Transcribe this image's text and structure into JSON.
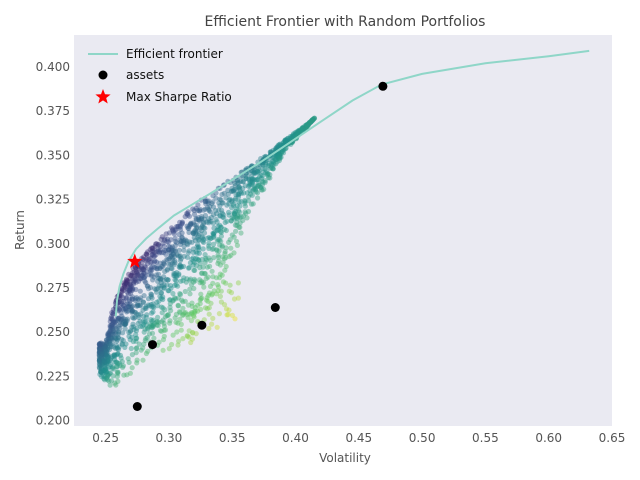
{
  "chart_data": {
    "type": "scatter",
    "title": "Efficient Frontier with Random Portfolios",
    "xlabel": "Volatility",
    "ylabel": "Return",
    "xlim": [
      0.225,
      0.65
    ],
    "ylim": [
      0.197,
      0.418
    ],
    "xticks": [
      "0.25",
      "0.30",
      "0.35",
      "0.40",
      "0.45",
      "0.50",
      "0.55",
      "0.60",
      "0.65"
    ],
    "yticks": [
      "0.200",
      "0.225",
      "0.250",
      "0.275",
      "0.300",
      "0.325",
      "0.350",
      "0.375",
      "0.400"
    ],
    "grid": false,
    "legend_position": "top-left",
    "background": "#eaeaf2",
    "colors": {
      "frontier": "#8fd6c8",
      "assets": "#000000",
      "max_sharpe": "#ff0000",
      "cmap": [
        "#440154",
        "#3b528b",
        "#21918c",
        "#5ec962",
        "#fde725"
      ]
    },
    "legend": [
      {
        "label": "Efficient frontier",
        "marker": "line"
      },
      {
        "label": "assets",
        "marker": "circle"
      },
      {
        "label": "Max Sharpe Ratio",
        "marker": "star"
      }
    ],
    "series": [
      {
        "name": "Efficient frontier",
        "type": "line",
        "x": [
          0.258,
          0.259,
          0.261,
          0.264,
          0.268,
          0.274,
          0.282,
          0.292,
          0.304,
          0.318,
          0.334,
          0.352,
          0.372,
          0.395,
          0.42,
          0.445,
          0.468,
          0.5,
          0.55,
          0.6,
          0.632
        ],
        "y": [
          0.259,
          0.268,
          0.276,
          0.283,
          0.29,
          0.297,
          0.303,
          0.309,
          0.316,
          0.322,
          0.329,
          0.337,
          0.346,
          0.357,
          0.369,
          0.381,
          0.39,
          0.396,
          0.402,
          0.406,
          0.409
        ]
      },
      {
        "name": "assets",
        "type": "scatter",
        "x": [
          0.469,
          0.384,
          0.326,
          0.287,
          0.275
        ],
        "y": [
          0.389,
          0.264,
          0.254,
          0.243,
          0.208
        ]
      },
      {
        "name": "Max Sharpe Ratio",
        "type": "scatter",
        "x": [
          0.273
        ],
        "y": [
          0.29
        ]
      }
    ],
    "random_portfolios": {
      "count": 1600,
      "upper_edge": [
        [
          0.25,
          0.244
        ],
        [
          0.255,
          0.262
        ],
        [
          0.26,
          0.272
        ],
        [
          0.265,
          0.279
        ],
        [
          0.27,
          0.285
        ],
        [
          0.28,
          0.293
        ],
        [
          0.29,
          0.301
        ],
        [
          0.3,
          0.308
        ],
        [
          0.31,
          0.315
        ],
        [
          0.32,
          0.322
        ],
        [
          0.33,
          0.327
        ],
        [
          0.34,
          0.332
        ],
        [
          0.35,
          0.337
        ],
        [
          0.36,
          0.342
        ],
        [
          0.37,
          0.347
        ],
        [
          0.38,
          0.352
        ],
        [
          0.39,
          0.358
        ],
        [
          0.4,
          0.363
        ],
        [
          0.41,
          0.368
        ],
        [
          0.415,
          0.371
        ]
      ],
      "lower_edge": [
        [
          0.245,
          0.225
        ],
        [
          0.255,
          0.215
        ],
        [
          0.265,
          0.222
        ],
        [
          0.28,
          0.234
        ],
        [
          0.295,
          0.248
        ],
        [
          0.31,
          0.253
        ],
        [
          0.33,
          0.262
        ],
        [
          0.345,
          0.275
        ],
        [
          0.35,
          0.29
        ],
        [
          0.36,
          0.31
        ],
        [
          0.375,
          0.33
        ],
        [
          0.39,
          0.35
        ],
        [
          0.415,
          0.371
        ]
      ],
      "right_tail": [
        [
          0.3,
          0.25
        ],
        [
          0.32,
          0.256
        ],
        [
          0.33,
          0.262
        ],
        [
          0.345,
          0.265
        ],
        [
          0.355,
          0.27
        ]
      ],
      "color_by": "sharpe_ratio_low_to_high_from_yellow_to_purple"
    }
  }
}
